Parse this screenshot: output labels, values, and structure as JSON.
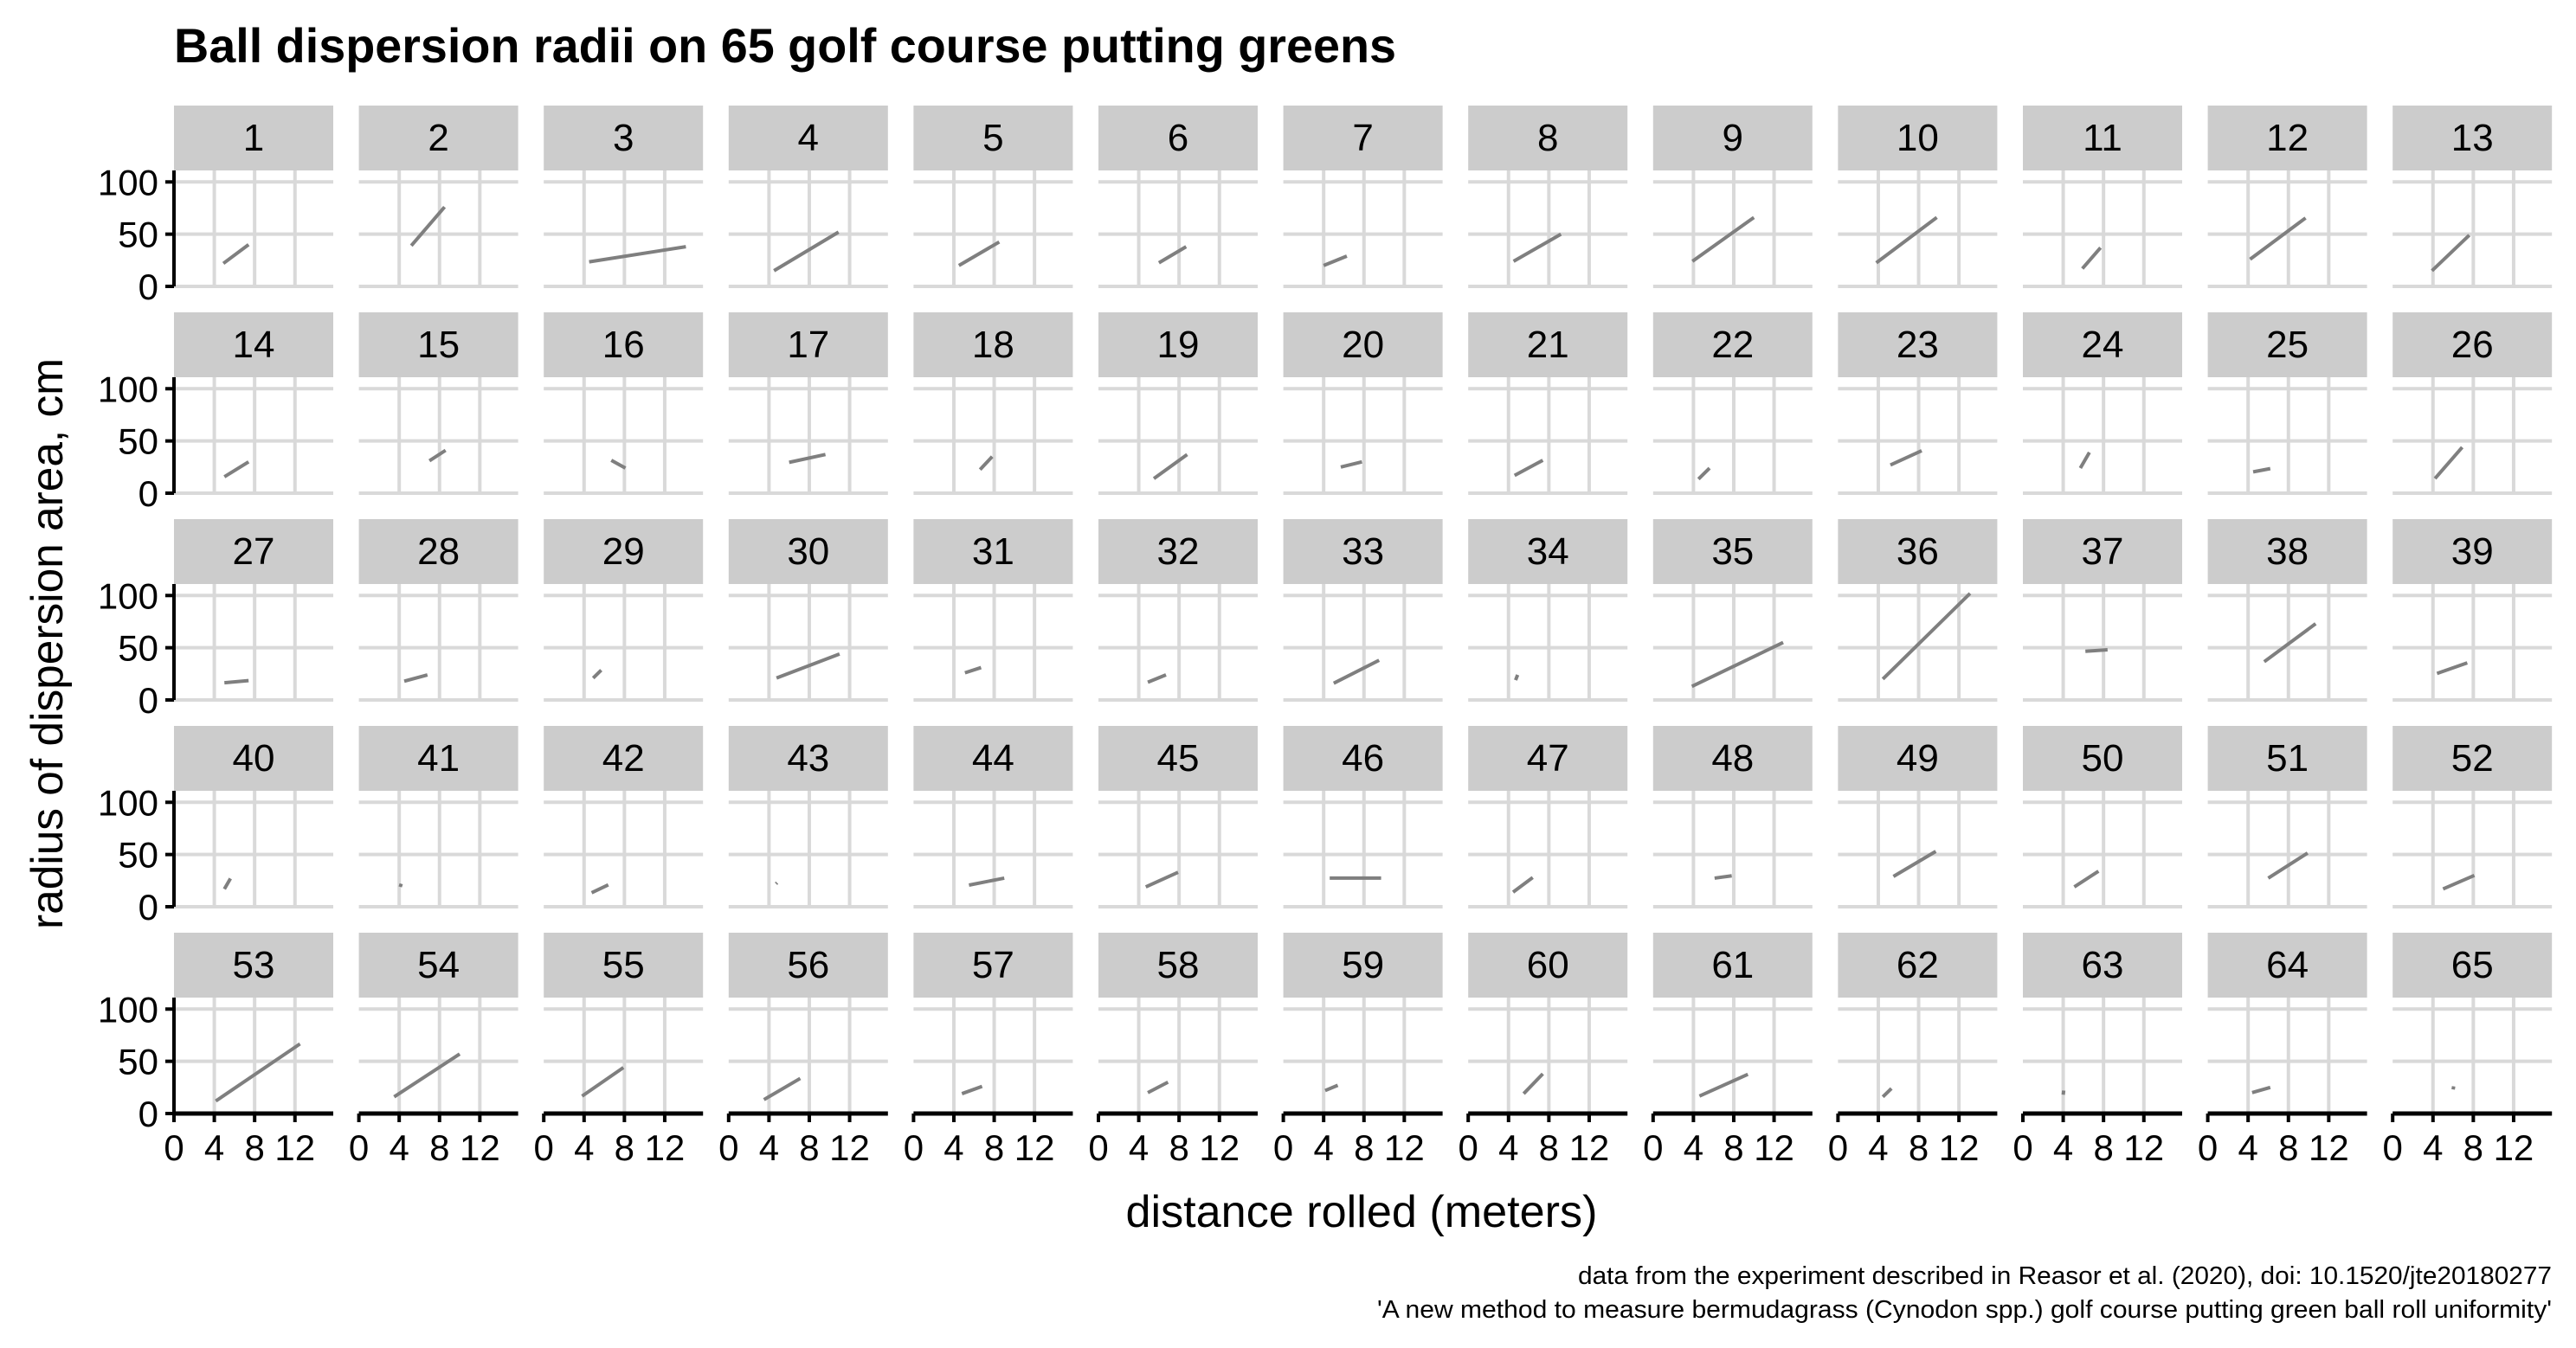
{
  "chart_data": {
    "type": "line",
    "layout": "facet grid, 13 columns x 5 rows",
    "title": "Ball dispersion radii on 65 golf course putting greens",
    "xlabel": "distance rolled (meters)",
    "ylabel": "radius of dispersion area, cm",
    "caption": [
      "data from the experiment described in Reasor et al. (2020), doi: 10.1520/jte20180277",
      "'A new method to measure bermudagrass (Cynodon spp.) golf course putting green ball roll uniformity'"
    ],
    "xlim": [
      0,
      15.8
    ],
    "ylim": [
      0,
      111
    ],
    "x_ticks": [
      "0",
      "4",
      "8",
      "12"
    ],
    "y_ticks": [
      "0",
      "50",
      "100"
    ],
    "grid": true,
    "line_color": "#7f7f7f",
    "strip_color": "#cccccc",
    "grid_color": "#d9d9d9",
    "panels": [
      {
        "id": "1",
        "x": [
          4.9,
          7.4
        ],
        "y": [
          22,
          40
        ]
      },
      {
        "id": "2",
        "x": [
          5.2,
          8.5
        ],
        "y": [
          39,
          76
        ]
      },
      {
        "id": "3",
        "x": [
          4.5,
          14.1
        ],
        "y": [
          23.5,
          38
        ]
      },
      {
        "id": "4",
        "x": [
          4.5,
          10.9
        ],
        "y": [
          15,
          52
        ]
      },
      {
        "id": "5",
        "x": [
          4.5,
          8.5
        ],
        "y": [
          20,
          42.5
        ]
      },
      {
        "id": "6",
        "x": [
          6.0,
          8.7
        ],
        "y": [
          22.6,
          38
        ]
      },
      {
        "id": "7",
        "x": [
          4.0,
          6.3
        ],
        "y": [
          20,
          29
        ]
      },
      {
        "id": "8",
        "x": [
          4.5,
          9.2
        ],
        "y": [
          24,
          50
        ]
      },
      {
        "id": "9",
        "x": [
          3.9,
          10.0
        ],
        "y": [
          24,
          66
        ]
      },
      {
        "id": "10",
        "x": [
          3.8,
          9.8
        ],
        "y": [
          22.6,
          66
        ]
      },
      {
        "id": "11",
        "x": [
          5.9,
          7.7
        ],
        "y": [
          17,
          37
        ]
      },
      {
        "id": "12",
        "x": [
          4.2,
          9.7
        ],
        "y": [
          26,
          65.5
        ]
      },
      {
        "id": "13",
        "x": [
          3.9,
          7.6
        ],
        "y": [
          15,
          49
        ]
      },
      {
        "id": "14",
        "x": [
          5.0,
          7.4
        ],
        "y": [
          15.7,
          30
        ]
      },
      {
        "id": "15",
        "x": [
          7.0,
          8.6
        ],
        "y": [
          31,
          41
        ]
      },
      {
        "id": "16",
        "x": [
          6.7,
          8.1
        ],
        "y": [
          31.5,
          24
        ]
      },
      {
        "id": "17",
        "x": [
          6.0,
          9.6
        ],
        "y": [
          29.5,
          37
        ]
      },
      {
        "id": "18",
        "x": [
          6.6,
          7.8
        ],
        "y": [
          22.6,
          35
        ]
      },
      {
        "id": "19",
        "x": [
          5.5,
          8.8
        ],
        "y": [
          14,
          37
        ]
      },
      {
        "id": "20",
        "x": [
          5.7,
          7.8
        ],
        "y": [
          25,
          30
        ]
      },
      {
        "id": "21",
        "x": [
          4.6,
          7.4
        ],
        "y": [
          17,
          31.5
        ]
      },
      {
        "id": "22",
        "x": [
          4.5,
          5.6
        ],
        "y": [
          13.5,
          24
        ]
      },
      {
        "id": "23",
        "x": [
          5.2,
          8.3
        ],
        "y": [
          27,
          40.6
        ]
      },
      {
        "id": "24",
        "x": [
          5.7,
          6.6
        ],
        "y": [
          24,
          39
        ]
      },
      {
        "id": "25",
        "x": [
          4.5,
          6.2
        ],
        "y": [
          20.4,
          23.5
        ]
      },
      {
        "id": "26",
        "x": [
          4.2,
          6.9
        ],
        "y": [
          14,
          44
        ]
      },
      {
        "id": "27",
        "x": [
          5.0,
          7.4
        ],
        "y": [
          16.5,
          18.5
        ]
      },
      {
        "id": "28",
        "x": [
          4.5,
          6.8
        ],
        "y": [
          18,
          24
        ]
      },
      {
        "id": "29",
        "x": [
          4.9,
          5.7
        ],
        "y": [
          21,
          28.5
        ]
      },
      {
        "id": "30",
        "x": [
          4.75,
          11.0
        ],
        "y": [
          21,
          44
        ]
      },
      {
        "id": "31",
        "x": [
          5.1,
          6.7
        ],
        "y": [
          26,
          31
        ]
      },
      {
        "id": "32",
        "x": [
          4.9,
          6.7
        ],
        "y": [
          17,
          24
        ]
      },
      {
        "id": "33",
        "x": [
          5.0,
          9.5
        ],
        "y": [
          16,
          38
        ]
      },
      {
        "id": "34",
        "x": [
          4.7,
          4.9
        ],
        "y": [
          19,
          24
        ]
      },
      {
        "id": "35",
        "x": [
          3.85,
          12.9
        ],
        "y": [
          13,
          55
        ]
      },
      {
        "id": "36",
        "x": [
          4.45,
          13.1
        ],
        "y": [
          20,
          102
        ]
      },
      {
        "id": "37",
        "x": [
          6.2,
          8.4
        ],
        "y": [
          46.6,
          48
        ]
      },
      {
        "id": "38",
        "x": [
          5.6,
          10.7
        ],
        "y": [
          36.6,
          73
        ]
      },
      {
        "id": "39",
        "x": [
          4.4,
          7.4
        ],
        "y": [
          25.4,
          35.5
        ]
      },
      {
        "id": "40",
        "x": [
          5.0,
          5.6
        ],
        "y": [
          17,
          27
        ]
      },
      {
        "id": "41",
        "x": [
          4.1,
          4.2
        ],
        "y": [
          19,
          22
        ]
      },
      {
        "id": "42",
        "x": [
          4.75,
          6.4
        ],
        "y": [
          13.4,
          21
        ]
      },
      {
        "id": "43",
        "x": [
          4.7,
          4.8
        ],
        "y": [
          22,
          23
        ]
      },
      {
        "id": "44",
        "x": [
          5.5,
          9.0
        ],
        "y": [
          20.7,
          27.4
        ]
      },
      {
        "id": "45",
        "x": [
          4.7,
          7.9
        ],
        "y": [
          19,
          33
        ]
      },
      {
        "id": "46",
        "x": [
          4.6,
          9.7
        ],
        "y": [
          27.4,
          27.4
        ]
      },
      {
        "id": "47",
        "x": [
          4.45,
          6.4
        ],
        "y": [
          14,
          28
        ]
      },
      {
        "id": "48",
        "x": [
          6.1,
          7.8
        ],
        "y": [
          27.4,
          29.6
        ]
      },
      {
        "id": "49",
        "x": [
          5.5,
          9.7
        ],
        "y": [
          29,
          53
        ]
      },
      {
        "id": "50",
        "x": [
          5.1,
          7.5
        ],
        "y": [
          19,
          34
        ]
      },
      {
        "id": "51",
        "x": [
          6.0,
          9.9
        ],
        "y": [
          27.4,
          51.4
        ]
      },
      {
        "id": "52",
        "x": [
          5.0,
          8.1
        ],
        "y": [
          17,
          30
        ]
      },
      {
        "id": "53",
        "x": [
          4.15,
          12.5
        ],
        "y": [
          12,
          66.7
        ]
      },
      {
        "id": "54",
        "x": [
          3.5,
          10.0
        ],
        "y": [
          16,
          57
        ]
      },
      {
        "id": "55",
        "x": [
          3.8,
          7.9
        ],
        "y": [
          16.7,
          44
        ]
      },
      {
        "id": "56",
        "x": [
          3.5,
          7.1
        ],
        "y": [
          13.3,
          33.6
        ]
      },
      {
        "id": "57",
        "x": [
          4.8,
          6.8
        ],
        "y": [
          19,
          26
        ]
      },
      {
        "id": "58",
        "x": [
          4.9,
          6.9
        ],
        "y": [
          20,
          30
        ]
      },
      {
        "id": "59",
        "x": [
          4.15,
          5.4
        ],
        "y": [
          22,
          27
        ]
      },
      {
        "id": "60",
        "x": [
          5.5,
          7.4
        ],
        "y": [
          19,
          38
        ]
      },
      {
        "id": "61",
        "x": [
          4.6,
          9.4
        ],
        "y": [
          16.7,
          37.5
        ]
      },
      {
        "id": "62",
        "x": [
          4.45,
          5.3
        ],
        "y": [
          16,
          24
        ]
      },
      {
        "id": "63",
        "x": [
          4.0,
          4.05
        ],
        "y": [
          18,
          22
        ]
      },
      {
        "id": "64",
        "x": [
          4.4,
          6.2
        ],
        "y": [
          20,
          25
        ]
      },
      {
        "id": "65",
        "x": [
          6.0,
          6.05
        ],
        "y": [
          23,
          26
        ]
      }
    ]
  }
}
